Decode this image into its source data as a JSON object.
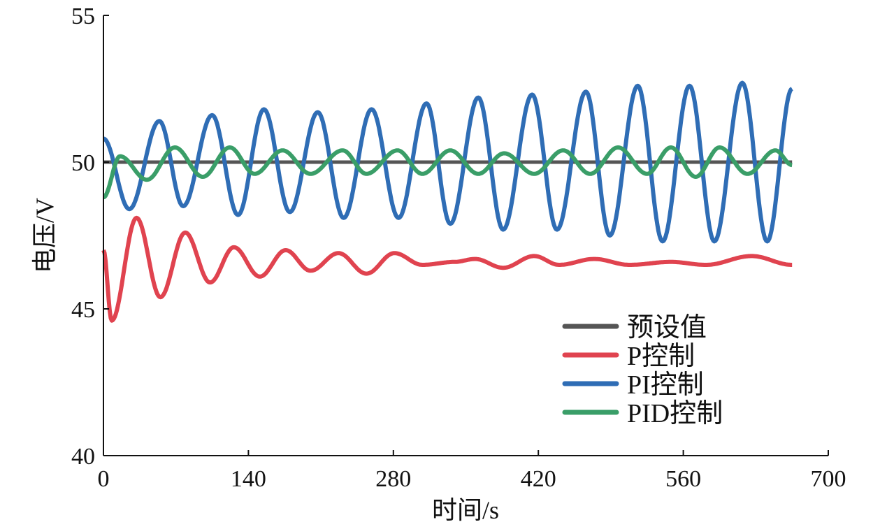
{
  "chart_data": {
    "type": "line",
    "title": "",
    "xlabel": "时间/s",
    "ylabel": "电压/V",
    "xlim": [
      0,
      700
    ],
    "ylim": [
      40,
      55
    ],
    "xticks": [
      0,
      140,
      280,
      420,
      560,
      700
    ],
    "yticks": [
      40,
      45,
      50,
      55
    ],
    "grid": false,
    "legend_position": "bottom-right",
    "series": [
      {
        "name": "预设值",
        "color": "#555555",
        "points": [
          [
            0,
            50
          ],
          [
            665,
            50
          ]
        ]
      },
      {
        "name": "P控制",
        "color": "#e0434f",
        "points": [
          [
            0,
            47
          ],
          [
            8,
            44.6
          ],
          [
            32,
            48.1
          ],
          [
            55,
            45.4
          ],
          [
            79,
            47.6
          ],
          [
            103,
            45.9
          ],
          [
            126,
            47.1
          ],
          [
            151,
            46.1
          ],
          [
            176,
            47.0
          ],
          [
            200,
            46.3
          ],
          [
            227,
            46.9
          ],
          [
            254,
            46.2
          ],
          [
            281,
            46.9
          ],
          [
            308,
            46.5
          ],
          [
            339,
            46.6
          ],
          [
            359,
            46.7
          ],
          [
            386,
            46.4
          ],
          [
            416,
            46.8
          ],
          [
            440,
            46.5
          ],
          [
            474,
            46.7
          ],
          [
            508,
            46.5
          ],
          [
            548,
            46.6
          ],
          [
            582,
            46.5
          ],
          [
            626,
            46.8
          ],
          [
            665,
            46.5
          ]
        ]
      },
      {
        "name": "PI控制",
        "color": "#2f6db5",
        "points": [
          [
            0,
            50.8
          ],
          [
            25,
            48.4
          ],
          [
            54,
            51.4
          ],
          [
            77,
            48.5
          ],
          [
            105,
            51.6
          ],
          [
            130,
            48.2
          ],
          [
            155,
            51.8
          ],
          [
            180,
            48.3
          ],
          [
            207,
            51.7
          ],
          [
            232,
            48.1
          ],
          [
            259,
            51.8
          ],
          [
            285,
            48.1
          ],
          [
            312,
            52.0
          ],
          [
            335,
            47.9
          ],
          [
            362,
            52.2
          ],
          [
            386,
            47.7
          ],
          [
            414,
            52.3
          ],
          [
            438,
            47.7
          ],
          [
            466,
            52.4
          ],
          [
            489,
            47.5
          ],
          [
            516,
            52.6
          ],
          [
            540,
            47.3
          ],
          [
            566,
            52.6
          ],
          [
            590,
            47.3
          ],
          [
            617,
            52.7
          ],
          [
            641,
            47.3
          ],
          [
            665,
            52.5
          ]
        ]
      },
      {
        "name": "PID控制",
        "color": "#3a9e68",
        "points": [
          [
            0,
            48.8
          ],
          [
            16,
            50.2
          ],
          [
            42,
            49.4
          ],
          [
            69,
            50.5
          ],
          [
            96,
            49.5
          ],
          [
            122,
            50.5
          ],
          [
            146,
            49.6
          ],
          [
            173,
            50.4
          ],
          [
            200,
            49.6
          ],
          [
            231,
            50.4
          ],
          [
            254,
            49.6
          ],
          [
            284,
            50.4
          ],
          [
            308,
            49.6
          ],
          [
            335,
            50.4
          ],
          [
            362,
            49.6
          ],
          [
            387,
            50.3
          ],
          [
            416,
            49.6
          ],
          [
            444,
            50.4
          ],
          [
            470,
            49.6
          ],
          [
            497,
            50.5
          ],
          [
            525,
            49.6
          ],
          [
            548,
            50.5
          ],
          [
            572,
            49.5
          ],
          [
            595,
            50.5
          ],
          [
            622,
            49.6
          ],
          [
            649,
            50.4
          ],
          [
            665,
            49.9
          ]
        ]
      }
    ]
  }
}
